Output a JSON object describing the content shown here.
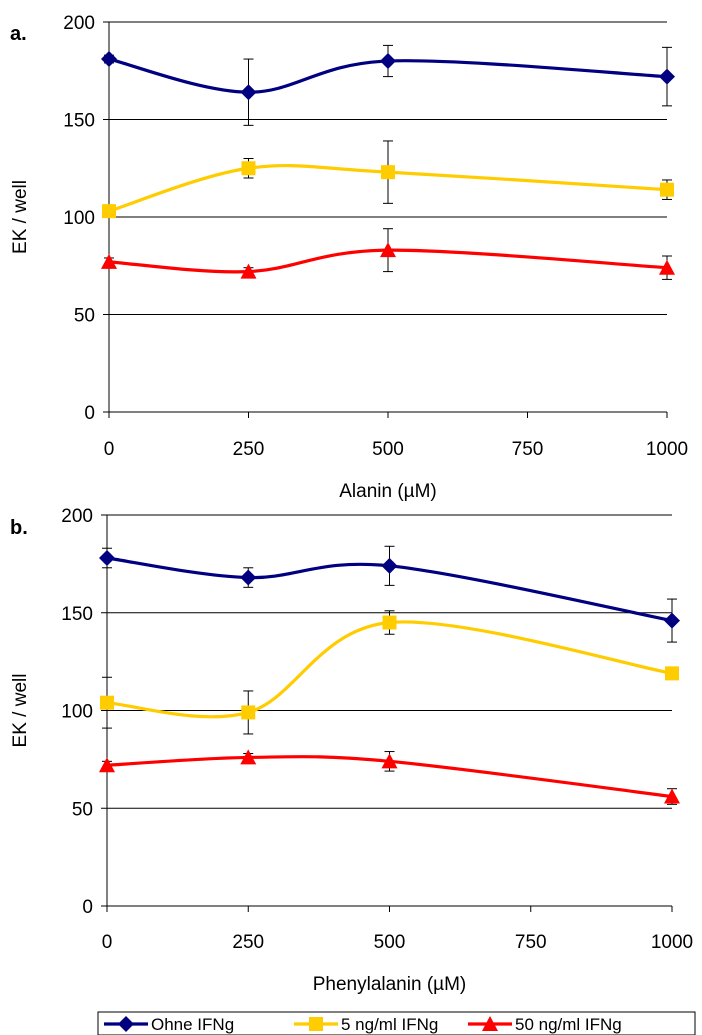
{
  "chart_data": [
    {
      "type": "line",
      "panel_label": "a.",
      "xlabel": "Alanin (µM)",
      "ylabel": "EK / well",
      "x_ticks": [
        0,
        250,
        500,
        750,
        1000
      ],
      "y_ticks": [
        0,
        50,
        100,
        150,
        200
      ],
      "xlim": [
        0,
        1000
      ],
      "ylim": [
        0,
        200
      ],
      "grid": "horizontal",
      "smooth": true,
      "x": [
        0,
        250,
        500,
        1000
      ],
      "series": [
        {
          "name": "Ohne IFNg",
          "values": [
            181,
            164,
            180,
            172
          ],
          "errors": [
            2,
            17,
            8,
            15
          ]
        },
        {
          "name": "5 ng/ml IFNg",
          "values": [
            103,
            125,
            123,
            114
          ],
          "errors": [
            2,
            5,
            16,
            5
          ]
        },
        {
          "name": "50 ng/ml IFNg",
          "values": [
            77,
            72,
            83,
            74
          ],
          "errors": [
            2,
            2,
            11,
            6
          ]
        }
      ]
    },
    {
      "type": "line",
      "panel_label": "b.",
      "xlabel": "Phenylalanin (µM)",
      "ylabel": "EK / well",
      "x_ticks": [
        0,
        250,
        500,
        750,
        1000
      ],
      "y_ticks": [
        0,
        50,
        100,
        150,
        200
      ],
      "xlim": [
        0,
        1000
      ],
      "ylim": [
        0,
        200
      ],
      "grid": "horizontal",
      "smooth": true,
      "x": [
        0,
        250,
        500,
        1000
      ],
      "series": [
        {
          "name": "Ohne IFNg",
          "values": [
            178,
            168,
            174,
            146
          ],
          "errors": [
            5,
            5,
            10,
            11
          ]
        },
        {
          "name": "5 ng/ml IFNg",
          "values": [
            104,
            99,
            145,
            119
          ],
          "errors": [
            13,
            11,
            6,
            2
          ]
        },
        {
          "name": "50 ng/ml IFNg",
          "values": [
            72,
            76,
            74,
            56
          ],
          "errors": [
            2,
            2,
            5,
            4
          ]
        }
      ]
    }
  ],
  "legend": {
    "placement": "bottom",
    "items": [
      {
        "label": "Ohne IFNg",
        "color": "#000080",
        "marker": "diamond"
      },
      {
        "label": "5 ng/ml IFNg",
        "color": "#FFCC00",
        "marker": "square"
      },
      {
        "label": "50 ng/ml IFNg",
        "color": "#FF0000",
        "marker": "triangle"
      }
    ]
  },
  "colors": {
    "series": [
      "#000080",
      "#FFCC00",
      "#FF0000"
    ],
    "gridline": "#000000",
    "background": "#FFFFFF"
  }
}
